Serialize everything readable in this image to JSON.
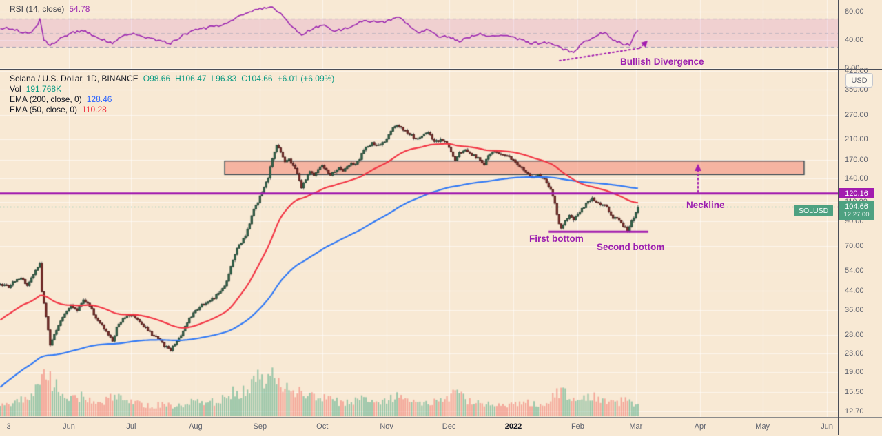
{
  "colors": {
    "background": "#f8e9d4",
    "grid": "rgba(255,255,255,0.55)",
    "candle_up": "#35684e",
    "candle_up_border": "#1d3d2d",
    "candle_down": "#7c2f2d",
    "candle_down_border": "#4a1512",
    "wick": "#55585e",
    "volume_up": "rgba(76,169,133,0.55)",
    "volume_down": "rgba(240,114,105,0.55)",
    "ema50": "#f23645",
    "ema200": "#3179f5",
    "rsi_line": "#9c27b0",
    "rsi_band_fill": "rgba(186,48,186,0.13)",
    "rsi_band_line": "#9d9fb0",
    "purple_annotation": "#a21caf",
    "price_line": "#089981",
    "zone_fill": "rgba(242,128,110,0.5)",
    "zone_border": "#37474f"
  },
  "rsi_pane": {
    "legend_label": "RSI (14, close)",
    "legend_value": "54.78",
    "annotation": "Bullish Divergence",
    "band": {
      "upper": 70,
      "middle": 50,
      "lower": 30
    },
    "axis_ticks": [
      {
        "label": "80.00",
        "value": 80
      },
      {
        "label": "40.00",
        "value": 40
      },
      {
        "label": "0.00",
        "value": 0
      }
    ]
  },
  "price_pane": {
    "legend": {
      "symbol": "Solana / U.S. Dollar, 1D, BINANCE",
      "open": "O98.66",
      "high": "H106.47",
      "low": "L96.83",
      "close": "C104.66",
      "change": "+6.01 (+6.09%)",
      "vol_label": "Vol",
      "vol_value": "191.768K",
      "ema200_label": "EMA (200, close, 0)",
      "ema200_value": "128.46",
      "ema50_label": "EMA (50, close, 0)",
      "ema50_value": "110.28"
    },
    "currency_badge": "USD",
    "symbol_badge": "SOLUSD",
    "neckline_badge": "120.16",
    "price_badge": {
      "price": "104.66",
      "countdown": "12:27:00"
    },
    "annotations": {
      "neckline": "Neckline",
      "first_bottom": "First bottom",
      "second_bottom": "Second bottom"
    },
    "axis_ticks": [
      {
        "label": "425.00",
        "value": 425
      },
      {
        "label": "350.00",
        "value": 350
      },
      {
        "label": "270.00",
        "value": 270
      },
      {
        "label": "210.00",
        "value": 210
      },
      {
        "label": "170.00",
        "value": 170
      },
      {
        "label": "140.00",
        "value": 140
      },
      {
        "label": "110.00",
        "value": 110
      },
      {
        "label": "90.00",
        "value": 90
      },
      {
        "label": "70.00",
        "value": 70
      },
      {
        "label": "54.00",
        "value": 54
      },
      {
        "label": "44.00",
        "value": 44
      },
      {
        "label": "36.00",
        "value": 36
      },
      {
        "label": "28.00",
        "value": 28
      },
      {
        "label": "23.00",
        "value": 23
      },
      {
        "label": "19.00",
        "value": 19
      },
      {
        "label": "15.50",
        "value": 15.5
      },
      {
        "label": "12.70",
        "value": 12.7
      }
    ]
  },
  "time_axis": {
    "labels": [
      {
        "label": "3",
        "day": 0,
        "bold": false
      },
      {
        "label": "Jun",
        "day": 29,
        "bold": false
      },
      {
        "label": "Jul",
        "day": 59,
        "bold": false
      },
      {
        "label": "Aug",
        "day": 90,
        "bold": false
      },
      {
        "label": "Sep",
        "day": 121,
        "bold": false
      },
      {
        "label": "Oct",
        "day": 151,
        "bold": false
      },
      {
        "label": "Nov",
        "day": 182,
        "bold": false
      },
      {
        "label": "Dec",
        "day": 212,
        "bold": false
      },
      {
        "label": "2022",
        "day": 243,
        "bold": true
      },
      {
        "label": "Feb",
        "day": 274,
        "bold": false
      },
      {
        "label": "Mar",
        "day": 302,
        "bold": false
      },
      {
        "label": "Apr",
        "day": 333,
        "bold": false
      },
      {
        "label": "May",
        "day": 363,
        "bold": false
      },
      {
        "label": "Jun",
        "day": 394,
        "bold": false
      }
    ]
  },
  "chart_data": {
    "type": "candlestick",
    "symbol": "SOLUSD",
    "description": "Solana / U.S. Dollar",
    "interval": "1D",
    "exchange": "BINANCE",
    "price_scale": {
      "type": "log",
      "visible_min": 12.7,
      "visible_max": 435
    },
    "rsi_scale": {
      "min": 0,
      "max": 80,
      "band": [
        30,
        70
      ]
    },
    "date_range": {
      "start_label": "May 3 2021",
      "end_label": "Mar 2022",
      "days_plotted": 308,
      "future_days_shown": 91
    },
    "last_candle": {
      "open": 98.66,
      "high": 106.47,
      "low": 96.83,
      "close": 104.66,
      "change": 6.01,
      "change_pct": 6.09
    },
    "last_volume_label": "191.768K",
    "indicators": {
      "rsi": {
        "period": 14,
        "source": "close",
        "value": 54.78
      },
      "ema200": {
        "value": 128.46,
        "seed": 16
      },
      "ema50": {
        "value": 110.28,
        "seed": 32
      }
    },
    "levels": {
      "neckline_price": 120.16,
      "current_price": 104.66,
      "double_bottom_price": 81,
      "resistance_zone": {
        "price_top": 168,
        "price_bottom": 146,
        "day_start": 104,
        "day_end": 383
      },
      "bottom_segment": {
        "day_start": 260,
        "day_end": 308
      }
    },
    "close_anchors": [
      [
        -4,
        47
      ],
      [
        0,
        46
      ],
      [
        3,
        49
      ],
      [
        6,
        50
      ],
      [
        9,
        47
      ],
      [
        12,
        52
      ],
      [
        14,
        56
      ],
      [
        15,
        58
      ],
      [
        16,
        44
      ],
      [
        18,
        34
      ],
      [
        20,
        25
      ],
      [
        22,
        28
      ],
      [
        24,
        31
      ],
      [
        27,
        35
      ],
      [
        30,
        38
      ],
      [
        33,
        36
      ],
      [
        36,
        40
      ],
      [
        39,
        38
      ],
      [
        42,
        33
      ],
      [
        45,
        31
      ],
      [
        48,
        28
      ],
      [
        50,
        26
      ],
      [
        52,
        30
      ],
      [
        55,
        33
      ],
      [
        58,
        34
      ],
      [
        60,
        34
      ],
      [
        63,
        32
      ],
      [
        66,
        30
      ],
      [
        69,
        28
      ],
      [
        72,
        27
      ],
      [
        75,
        25
      ],
      [
        78,
        24
      ],
      [
        81,
        26
      ],
      [
        84,
        29
      ],
      [
        87,
        33
      ],
      [
        90,
        36
      ],
      [
        93,
        38
      ],
      [
        96,
        39
      ],
      [
        99,
        41
      ],
      [
        102,
        44
      ],
      [
        104,
        46
      ],
      [
        106,
        52
      ],
      [
        108,
        60
      ],
      [
        110,
        68
      ],
      [
        112,
        73
      ],
      [
        114,
        78
      ],
      [
        116,
        88
      ],
      [
        118,
        102
      ],
      [
        120,
        110
      ],
      [
        123,
        128
      ],
      [
        125,
        142
      ],
      [
        127,
        172
      ],
      [
        129,
        200
      ],
      [
        131,
        185
      ],
      [
        133,
        165
      ],
      [
        135,
        172
      ],
      [
        137,
        160
      ],
      [
        139,
        148
      ],
      [
        141,
        128
      ],
      [
        143,
        140
      ],
      [
        145,
        150
      ],
      [
        147,
        146
      ],
      [
        149,
        155
      ],
      [
        151,
        162
      ],
      [
        153,
        152
      ],
      [
        155,
        146
      ],
      [
        157,
        152
      ],
      [
        159,
        158
      ],
      [
        161,
        152
      ],
      [
        163,
        158
      ],
      [
        165,
        164
      ],
      [
        167,
        162
      ],
      [
        169,
        172
      ],
      [
        171,
        188
      ],
      [
        173,
        196
      ],
      [
        175,
        202
      ],
      [
        177,
        196
      ],
      [
        179,
        200
      ],
      [
        181,
        204
      ],
      [
        183,
        222
      ],
      [
        185,
        235
      ],
      [
        187,
        242
      ],
      [
        189,
        236
      ],
      [
        191,
        228
      ],
      [
        193,
        222
      ],
      [
        196,
        210
      ],
      [
        199,
        218
      ],
      [
        202,
        225
      ],
      [
        205,
        205
      ],
      [
        208,
        208
      ],
      [
        211,
        200
      ],
      [
        213,
        186
      ],
      [
        215,
        170
      ],
      [
        217,
        182
      ],
      [
        220,
        188
      ],
      [
        223,
        180
      ],
      [
        226,
        172
      ],
      [
        229,
        162
      ],
      [
        231,
        178
      ],
      [
        234,
        185
      ],
      [
        237,
        180
      ],
      [
        240,
        176
      ],
      [
        243,
        170
      ],
      [
        246,
        160
      ],
      [
        249,
        150
      ],
      [
        252,
        140
      ],
      [
        255,
        146
      ],
      [
        258,
        138
      ],
      [
        260,
        130
      ],
      [
        262,
        118
      ],
      [
        264,
        97
      ],
      [
        265,
        88
      ],
      [
        266,
        84
      ],
      [
        268,
        90
      ],
      [
        270,
        95
      ],
      [
        272,
        92
      ],
      [
        274,
        98
      ],
      [
        276,
        102
      ],
      [
        278,
        108
      ],
      [
        281,
        114
      ],
      [
        283,
        110
      ],
      [
        285,
        106
      ],
      [
        287,
        108
      ],
      [
        289,
        100
      ],
      [
        291,
        94
      ],
      [
        293,
        92
      ],
      [
        295,
        88
      ],
      [
        297,
        84
      ],
      [
        298,
        82
      ],
      [
        300,
        90
      ],
      [
        302,
        98.66
      ],
      [
        303,
        104.66
      ]
    ],
    "rsi_anchors": [
      [
        -4,
        56
      ],
      [
        0,
        57
      ],
      [
        5,
        53
      ],
      [
        10,
        48
      ],
      [
        14,
        62
      ],
      [
        15,
        69
      ],
      [
        17,
        40
      ],
      [
        20,
        33
      ],
      [
        25,
        42
      ],
      [
        30,
        50
      ],
      [
        36,
        53
      ],
      [
        42,
        44
      ],
      [
        50,
        36
      ],
      [
        55,
        45
      ],
      [
        60,
        48
      ],
      [
        66,
        44
      ],
      [
        74,
        38
      ],
      [
        78,
        35
      ],
      [
        83,
        45
      ],
      [
        90,
        55
      ],
      [
        97,
        58
      ],
      [
        104,
        62
      ],
      [
        109,
        70
      ],
      [
        113,
        76
      ],
      [
        117,
        80
      ],
      [
        120,
        83
      ],
      [
        124,
        85
      ],
      [
        127,
        87
      ],
      [
        130,
        80
      ],
      [
        133,
        72
      ],
      [
        136,
        60
      ],
      [
        139,
        52
      ],
      [
        141,
        46
      ],
      [
        144,
        52
      ],
      [
        148,
        58
      ],
      [
        151,
        62
      ],
      [
        156,
        52
      ],
      [
        161,
        55
      ],
      [
        166,
        60
      ],
      [
        171,
        68
      ],
      [
        176,
        66
      ],
      [
        181,
        65
      ],
      [
        187,
        72
      ],
      [
        190,
        68
      ],
      [
        194,
        58
      ],
      [
        197,
        50
      ],
      [
        202,
        56
      ],
      [
        207,
        45
      ],
      [
        212,
        44
      ],
      [
        217,
        38
      ],
      [
        222,
        44
      ],
      [
        227,
        48
      ],
      [
        232,
        45
      ],
      [
        237,
        48
      ],
      [
        242,
        44
      ],
      [
        247,
        40
      ],
      [
        252,
        35
      ],
      [
        257,
        36
      ],
      [
        262,
        34
      ],
      [
        267,
        27
      ],
      [
        270,
        24
      ],
      [
        272,
        23
      ],
      [
        276,
        35
      ],
      [
        280,
        42
      ],
      [
        284,
        48
      ],
      [
        287,
        51
      ],
      [
        290,
        42
      ],
      [
        293,
        38
      ],
      [
        296,
        34
      ],
      [
        299,
        33
      ],
      [
        301,
        45
      ],
      [
        303,
        54.78
      ]
    ],
    "volume_envelope": [
      [
        -4,
        0.28
      ],
      [
        0,
        0.3
      ],
      [
        6,
        0.35
      ],
      [
        12,
        0.5
      ],
      [
        15,
        0.7
      ],
      [
        17,
        0.95
      ],
      [
        19,
        0.85
      ],
      [
        22,
        0.7
      ],
      [
        25,
        0.5
      ],
      [
        30,
        0.38
      ],
      [
        35,
        0.42
      ],
      [
        40,
        0.35
      ],
      [
        45,
        0.3
      ],
      [
        50,
        0.45
      ],
      [
        55,
        0.35
      ],
      [
        60,
        0.3
      ],
      [
        65,
        0.25
      ],
      [
        70,
        0.22
      ],
      [
        75,
        0.28
      ],
      [
        80,
        0.22
      ],
      [
        85,
        0.25
      ],
      [
        90,
        0.35
      ],
      [
        95,
        0.3
      ],
      [
        100,
        0.32
      ],
      [
        105,
        0.4
      ],
      [
        108,
        0.55
      ],
      [
        111,
        0.5
      ],
      [
        114,
        0.6
      ],
      [
        117,
        0.65
      ],
      [
        120,
        0.8
      ],
      [
        123,
        0.7
      ],
      [
        125,
        0.85
      ],
      [
        127,
        1.0
      ],
      [
        129,
        0.8
      ],
      [
        132,
        0.65
      ],
      [
        135,
        0.55
      ],
      [
        138,
        0.5
      ],
      [
        141,
        0.55
      ],
      [
        145,
        0.45
      ],
      [
        150,
        0.4
      ],
      [
        155,
        0.35
      ],
      [
        160,
        0.3
      ],
      [
        165,
        0.32
      ],
      [
        170,
        0.38
      ],
      [
        175,
        0.35
      ],
      [
        180,
        0.3
      ],
      [
        184,
        0.4
      ],
      [
        187,
        0.45
      ],
      [
        190,
        0.4
      ],
      [
        194,
        0.35
      ],
      [
        198,
        0.3
      ],
      [
        202,
        0.32
      ],
      [
        206,
        0.3
      ],
      [
        210,
        0.32
      ],
      [
        215,
        0.5
      ],
      [
        219,
        0.4
      ],
      [
        223,
        0.3
      ],
      [
        227,
        0.28
      ],
      [
        231,
        0.3
      ],
      [
        235,
        0.25
      ],
      [
        239,
        0.22
      ],
      [
        243,
        0.25
      ],
      [
        247,
        0.28
      ],
      [
        251,
        0.3
      ],
      [
        255,
        0.28
      ],
      [
        259,
        0.3
      ],
      [
        263,
        0.45
      ],
      [
        266,
        0.55
      ],
      [
        269,
        0.45
      ],
      [
        272,
        0.4
      ],
      [
        275,
        0.35
      ],
      [
        278,
        0.38
      ],
      [
        281,
        0.42
      ],
      [
        284,
        0.38
      ],
      [
        287,
        0.35
      ],
      [
        290,
        0.32
      ],
      [
        293,
        0.3
      ],
      [
        296,
        0.35
      ],
      [
        299,
        0.33
      ],
      [
        301,
        0.3
      ],
      [
        303,
        0.35
      ]
    ]
  }
}
